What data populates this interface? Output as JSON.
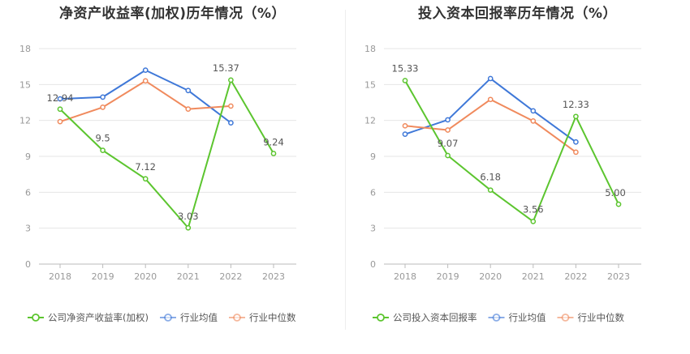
{
  "colors": {
    "company": "#5cc52f",
    "industry_avg": "#3f78d8",
    "industry_median": "#f08a5d",
    "grid": "#e6e6e6",
    "axis": "#999999"
  },
  "chart_data": [
    {
      "type": "line",
      "title": "净资产收益率(加权)历年情况（%）",
      "categories": [
        "2018",
        "2019",
        "2020",
        "2021",
        "2022",
        "2023"
      ],
      "ylim": [
        0,
        18
      ],
      "yticks": [
        "0",
        "3",
        "6",
        "9",
        "12",
        "15",
        "18"
      ],
      "grid": true,
      "legend_position": "bottom-left",
      "series": [
        {
          "name": "公司净资产收益率(加权)",
          "key": "company",
          "values": [
            12.94,
            9.5,
            7.12,
            3.03,
            15.37,
            9.24
          ],
          "labels": [
            "12.94",
            "9.5",
            "7.12",
            "3.03",
            "15.37",
            "9.24"
          ]
        },
        {
          "name": "行业均值",
          "key": "industry_avg",
          "values": [
            13.8,
            13.95,
            16.2,
            14.5,
            11.8,
            null
          ]
        },
        {
          "name": "行业中位数",
          "key": "industry_median",
          "values": [
            11.9,
            13.1,
            15.3,
            12.95,
            13.2,
            null
          ]
        }
      ]
    },
    {
      "type": "line",
      "title": "投入资本回报率历年情况（%）",
      "categories": [
        "2018",
        "2019",
        "2020",
        "2021",
        "2022",
        "2023"
      ],
      "ylim": [
        0,
        18
      ],
      "yticks": [
        "0",
        "3",
        "6",
        "9",
        "12",
        "15",
        "18"
      ],
      "grid": true,
      "legend_position": "bottom-left",
      "series": [
        {
          "name": "公司投入资本回报率",
          "key": "company",
          "values": [
            15.33,
            9.07,
            6.18,
            3.56,
            12.33,
            5.0
          ],
          "labels": [
            "15.33",
            "9.07",
            "6.18",
            "3.56",
            "12.33",
            "5.00"
          ]
        },
        {
          "name": "行业均值",
          "key": "industry_avg",
          "values": [
            10.85,
            12.05,
            15.5,
            12.8,
            10.2,
            null
          ]
        },
        {
          "name": "行业中位数",
          "key": "industry_median",
          "values": [
            11.55,
            11.2,
            13.75,
            11.95,
            9.35,
            null
          ]
        }
      ]
    }
  ]
}
